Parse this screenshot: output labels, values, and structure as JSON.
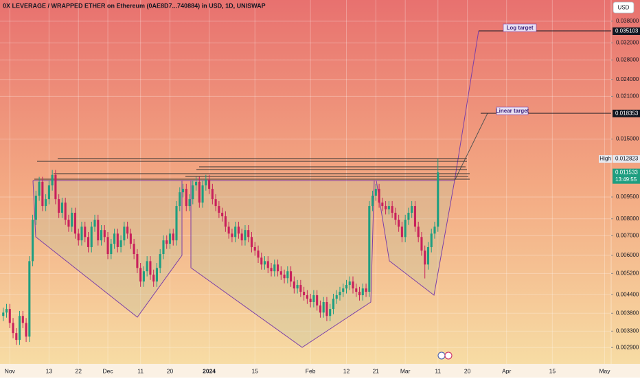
{
  "chart_data": {
    "type": "candlestick",
    "title": "0X LEVERAGE / WRAPPED ETHER on Ethereum (0AE8D7...740884) in USD, 1D, UNISWAP",
    "currency": "USD",
    "log_scale": true,
    "grid": true,
    "up_color": "#1e9e80",
    "down_color": "#c8205c",
    "ylim": [
      0.00255,
      0.0449
    ],
    "yticks": [
      {
        "value": 0.038,
        "label": "0.038000"
      },
      {
        "value": 0.032,
        "label": "0.032000"
      },
      {
        "value": 0.028,
        "label": "0.028000"
      },
      {
        "value": 0.024,
        "label": "0.024000"
      },
      {
        "value": 0.021,
        "label": "0.021000"
      },
      {
        "value": 0.015,
        "label": "0.015000"
      },
      {
        "value": 0.0095,
        "label": "0.009500"
      },
      {
        "value": 0.008,
        "label": "0.008000"
      },
      {
        "value": 0.007,
        "label": "0.007000"
      },
      {
        "value": 0.006,
        "label": "0.006000"
      },
      {
        "value": 0.0052,
        "label": "0.005200"
      },
      {
        "value": 0.0044,
        "label": "0.004400"
      },
      {
        "value": 0.0038,
        "label": "0.003800"
      },
      {
        "value": 0.0033,
        "label": "0.003300"
      },
      {
        "value": 0.0029,
        "label": "0.002900"
      }
    ],
    "xlim": [
      -3,
      184
    ],
    "xticks": [
      {
        "value": 0,
        "label": "Nov"
      },
      {
        "value": 12,
        "label": "13"
      },
      {
        "value": 21,
        "label": "22"
      },
      {
        "value": 30,
        "label": "Dec"
      },
      {
        "value": 40,
        "label": "11"
      },
      {
        "value": 49,
        "label": "20"
      },
      {
        "value": 61,
        "label": "2024"
      },
      {
        "value": 75,
        "label": "15"
      },
      {
        "value": 92,
        "label": "Feb"
      },
      {
        "value": 103,
        "label": "12"
      },
      {
        "value": 112,
        "label": "21"
      },
      {
        "value": 121,
        "label": "Mar"
      },
      {
        "value": 131,
        "label": "11"
      },
      {
        "value": 140,
        "label": "20"
      },
      {
        "value": 152,
        "label": "Apr"
      },
      {
        "value": 166,
        "label": "15"
      },
      {
        "value": 182,
        "label": "May"
      }
    ],
    "candles": [
      [
        -2,
        0.00372,
        0.00397,
        0.00357,
        0.00382
      ],
      [
        -1,
        0.00382,
        0.00409,
        0.00367,
        0.00393
      ],
      [
        0,
        0.00393,
        0.00409,
        0.00338,
        0.00352
      ],
      [
        1,
        0.00352,
        0.00366,
        0.00312,
        0.00325
      ],
      [
        2,
        0.00325,
        0.00338,
        0.00296,
        0.00308
      ],
      [
        3,
        0.00308,
        0.00387,
        0.00296,
        0.00372
      ],
      [
        4,
        0.00372,
        0.00387,
        0.00338,
        0.00352
      ],
      [
        5,
        0.00352,
        0.00366,
        0.00303,
        0.00316
      ],
      [
        6,
        0.00316,
        0.00596,
        0.00303,
        0.00573
      ],
      [
        7,
        0.00573,
        0.00826,
        0.0055,
        0.00794
      ],
      [
        8,
        0.00794,
        0.00998,
        0.00762,
        0.0096
      ],
      [
        9,
        0.0096,
        0.01114,
        0.00922,
        0.01071
      ],
      [
        10,
        0.01071,
        0.01114,
        0.0085,
        0.00885
      ],
      [
        11,
        0.00885,
        0.00971,
        0.0085,
        0.00934
      ],
      [
        12,
        0.00934,
        0.01083,
        0.00897,
        0.01041
      ],
      [
        13,
        0.01041,
        0.01176,
        0.00999,
        0.01131
      ],
      [
        14,
        0.01131,
        0.01176,
        0.00897,
        0.00934
      ],
      [
        15,
        0.00934,
        0.00971,
        0.00805,
        0.00839
      ],
      [
        16,
        0.00839,
        0.00945,
        0.00805,
        0.00909
      ],
      [
        17,
        0.00909,
        0.00945,
        0.00762,
        0.00794
      ],
      [
        18,
        0.00794,
        0.00826,
        0.00722,
        0.00752
      ],
      [
        19,
        0.00752,
        0.00873,
        0.00722,
        0.00839
      ],
      [
        20,
        0.00839,
        0.00873,
        0.00684,
        0.00712
      ],
      [
        21,
        0.00712,
        0.0074,
        0.00648,
        0.00675
      ],
      [
        22,
        0.00675,
        0.00782,
        0.00648,
        0.00752
      ],
      [
        23,
        0.00752,
        0.00782,
        0.00665,
        0.00693
      ],
      [
        24,
        0.00693,
        0.00721,
        0.00614,
        0.0064
      ],
      [
        25,
        0.0064,
        0.00782,
        0.00614,
        0.00752
      ],
      [
        26,
        0.00752,
        0.00826,
        0.00722,
        0.00794
      ],
      [
        27,
        0.00794,
        0.00826,
        0.00648,
        0.00675
      ],
      [
        28,
        0.00675,
        0.00761,
        0.00648,
        0.00732
      ],
      [
        29,
        0.00732,
        0.00761,
        0.00665,
        0.00693
      ],
      [
        30,
        0.00693,
        0.00721,
        0.00582,
        0.00606
      ],
      [
        31,
        0.00606,
        0.00683,
        0.00582,
        0.00657
      ],
      [
        32,
        0.00657,
        0.0074,
        0.00631,
        0.00712
      ],
      [
        33,
        0.00712,
        0.0074,
        0.00614,
        0.0064
      ],
      [
        34,
        0.0064,
        0.00702,
        0.00614,
        0.00675
      ],
      [
        35,
        0.00675,
        0.00782,
        0.00648,
        0.00752
      ],
      [
        36,
        0.00752,
        0.00782,
        0.00684,
        0.00712
      ],
      [
        37,
        0.00712,
        0.0074,
        0.00631,
        0.00657
      ],
      [
        38,
        0.00657,
        0.00683,
        0.00582,
        0.00606
      ],
      [
        39,
        0.00606,
        0.0063,
        0.00521,
        0.00543
      ],
      [
        40,
        0.00543,
        0.00565,
        0.00468,
        0.00488
      ],
      [
        41,
        0.00488,
        0.0055,
        0.00468,
        0.00529
      ],
      [
        42,
        0.00529,
        0.00596,
        0.00508,
        0.00573
      ],
      [
        43,
        0.00573,
        0.00596,
        0.00494,
        0.00515
      ],
      [
        44,
        0.00515,
        0.00536,
        0.00468,
        0.00488
      ],
      [
        45,
        0.00488,
        0.00565,
        0.00468,
        0.00543
      ],
      [
        46,
        0.00543,
        0.0063,
        0.00521,
        0.00606
      ],
      [
        47,
        0.00606,
        0.00702,
        0.00582,
        0.00675
      ],
      [
        48,
        0.00675,
        0.00702,
        0.00631,
        0.00657
      ],
      [
        49,
        0.00657,
        0.0074,
        0.00631,
        0.00712
      ],
      [
        50,
        0.00712,
        0.0074,
        0.00648,
        0.00675
      ],
      [
        51,
        0.00675,
        0.0092,
        0.00648,
        0.00885
      ],
      [
        52,
        0.00885,
        0.01025,
        0.0085,
        0.00986
      ],
      [
        53,
        0.00986,
        0.01054,
        0.00947,
        0.01013
      ],
      [
        54,
        0.01013,
        0.01054,
        0.0085,
        0.00885
      ],
      [
        55,
        0.00885,
        0.00971,
        0.0085,
        0.00934
      ],
      [
        56,
        0.00934,
        0.01083,
        0.00897,
        0.01041
      ],
      [
        57,
        0.01041,
        0.01114,
        0.00999,
        0.01071
      ],
      [
        58,
        0.01071,
        0.01114,
        0.00873,
        0.00909
      ],
      [
        59,
        0.00909,
        0.01083,
        0.00873,
        0.01041
      ],
      [
        60,
        0.01041,
        0.01132,
        0.00999,
        0.01088
      ],
      [
        61,
        0.01088,
        0.01132,
        0.00972,
        0.01013
      ],
      [
        62,
        0.01013,
        0.01054,
        0.00897,
        0.00934
      ],
      [
        63,
        0.00934,
        0.00971,
        0.0085,
        0.00885
      ],
      [
        64,
        0.00885,
        0.0092,
        0.00805,
        0.00839
      ],
      [
        65,
        0.00839,
        0.00873,
        0.00783,
        0.00816
      ],
      [
        66,
        0.00816,
        0.00849,
        0.00722,
        0.00752
      ],
      [
        67,
        0.00752,
        0.00782,
        0.00684,
        0.00712
      ],
      [
        68,
        0.00712,
        0.0074,
        0.00665,
        0.00693
      ],
      [
        69,
        0.00693,
        0.00782,
        0.00665,
        0.00752
      ],
      [
        70,
        0.00752,
        0.00782,
        0.00684,
        0.00712
      ],
      [
        71,
        0.00712,
        0.0074,
        0.00648,
        0.00675
      ],
      [
        72,
        0.00675,
        0.00761,
        0.00648,
        0.00732
      ],
      [
        73,
        0.00732,
        0.00761,
        0.00665,
        0.00693
      ],
      [
        74,
        0.00693,
        0.00721,
        0.00614,
        0.0064
      ],
      [
        75,
        0.0064,
        0.00666,
        0.00598,
        0.00623
      ],
      [
        76,
        0.00623,
        0.00648,
        0.00565,
        0.00589
      ],
      [
        77,
        0.00589,
        0.00613,
        0.00536,
        0.00558
      ],
      [
        78,
        0.00558,
        0.00596,
        0.00536,
        0.00573
      ],
      [
        79,
        0.00573,
        0.00596,
        0.00521,
        0.00543
      ],
      [
        80,
        0.00543,
        0.00565,
        0.00508,
        0.00529
      ],
      [
        81,
        0.00529,
        0.0058,
        0.00508,
        0.00558
      ],
      [
        82,
        0.00558,
        0.0058,
        0.00508,
        0.00529
      ],
      [
        83,
        0.00529,
        0.0055,
        0.00494,
        0.00515
      ],
      [
        84,
        0.00515,
        0.00536,
        0.00481,
        0.00501
      ],
      [
        85,
        0.00501,
        0.0055,
        0.00481,
        0.00529
      ],
      [
        86,
        0.00529,
        0.0055,
        0.00468,
        0.00488
      ],
      [
        87,
        0.00488,
        0.00508,
        0.00444,
        0.00462
      ],
      [
        88,
        0.00462,
        0.00494,
        0.00444,
        0.00475
      ],
      [
        89,
        0.00475,
        0.00494,
        0.00432,
        0.0045
      ],
      [
        90,
        0.0045,
        0.00468,
        0.0042,
        0.00438
      ],
      [
        91,
        0.00438,
        0.00456,
        0.00409,
        0.00426
      ],
      [
        92,
        0.00426,
        0.00443,
        0.00398,
        0.00415
      ],
      [
        93,
        0.00415,
        0.00456,
        0.00398,
        0.00438
      ],
      [
        94,
        0.00438,
        0.00456,
        0.00388,
        0.00404
      ],
      [
        95,
        0.00404,
        0.0042,
        0.00367,
        0.00382
      ],
      [
        96,
        0.00382,
        0.00432,
        0.00367,
        0.00415
      ],
      [
        97,
        0.00415,
        0.00432,
        0.00357,
        0.00372
      ],
      [
        98,
        0.00372,
        0.00409,
        0.00357,
        0.00393
      ],
      [
        99,
        0.00393,
        0.00443,
        0.00377,
        0.00426
      ],
      [
        100,
        0.00426,
        0.00456,
        0.00409,
        0.00438
      ],
      [
        101,
        0.00438,
        0.00468,
        0.0042,
        0.0045
      ],
      [
        102,
        0.0045,
        0.0048,
        0.00432,
        0.00462
      ],
      [
        103,
        0.00462,
        0.00494,
        0.00444,
        0.00475
      ],
      [
        104,
        0.00475,
        0.00508,
        0.00456,
        0.00488
      ],
      [
        105,
        0.00488,
        0.00508,
        0.00444,
        0.00462
      ],
      [
        106,
        0.00462,
        0.0048,
        0.00432,
        0.0045
      ],
      [
        107,
        0.0045,
        0.00468,
        0.0042,
        0.00438
      ],
      [
        108,
        0.00438,
        0.0048,
        0.0042,
        0.00462
      ],
      [
        109,
        0.00462,
        0.0048,
        0.00432,
        0.0045
      ],
      [
        110,
        0.0045,
        0.0092,
        0.00432,
        0.00885
      ],
      [
        111,
        0.00885,
        0.00998,
        0.0085,
        0.0096
      ],
      [
        112,
        0.0096,
        0.01054,
        0.00922,
        0.01013
      ],
      [
        113,
        0.01013,
        0.01054,
        0.00873,
        0.00909
      ],
      [
        114,
        0.00909,
        0.00945,
        0.0085,
        0.00885
      ],
      [
        115,
        0.00885,
        0.0092,
        0.00828,
        0.00862
      ],
      [
        116,
        0.00862,
        0.0092,
        0.00828,
        0.00885
      ],
      [
        117,
        0.00885,
        0.0092,
        0.00805,
        0.00839
      ],
      [
        118,
        0.00839,
        0.00873,
        0.00762,
        0.00794
      ],
      [
        119,
        0.00794,
        0.00826,
        0.00722,
        0.00752
      ],
      [
        120,
        0.00752,
        0.00782,
        0.00665,
        0.00693
      ],
      [
        121,
        0.00693,
        0.00826,
        0.00665,
        0.00794
      ],
      [
        122,
        0.00794,
        0.00873,
        0.00762,
        0.00839
      ],
      [
        123,
        0.00839,
        0.0092,
        0.00805,
        0.00885
      ],
      [
        124,
        0.00885,
        0.0092,
        0.00722,
        0.00752
      ],
      [
        125,
        0.00752,
        0.00782,
        0.00665,
        0.00693
      ],
      [
        126,
        0.00693,
        0.00721,
        0.00598,
        0.00623
      ],
      [
        127,
        0.00623,
        0.00648,
        0.005,
        0.00558
      ],
      [
        128,
        0.00558,
        0.00666,
        0.00536,
        0.0064
      ],
      [
        129,
        0.0064,
        0.0074,
        0.00614,
        0.00712
      ],
      [
        130,
        0.00712,
        0.00782,
        0.00684,
        0.00752
      ],
      [
        131,
        0.00752,
        0.012823,
        0.00722,
        0.011533
      ]
    ],
    "price_labels": [
      {
        "value": 0.035103,
        "bg": "#131722",
        "fg": "#ffffff"
      },
      {
        "value": 0.018353,
        "bg": "#131722",
        "fg": "#ffffff"
      },
      {
        "value": 0.012823,
        "bg": "#e6e8ee",
        "fg": "#131722",
        "tag": "High"
      },
      {
        "value": 0.011533,
        "bg": "#1e9e80",
        "fg": "#ffffff",
        "sub": "13:49:55"
      }
    ],
    "annotations": [
      "Log target",
      "Linear target"
    ]
  }
}
